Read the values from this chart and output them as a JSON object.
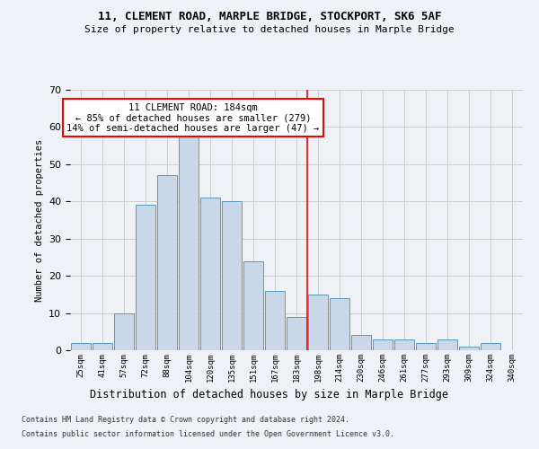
{
  "title1": "11, CLEMENT ROAD, MARPLE BRIDGE, STOCKPORT, SK6 5AF",
  "title2": "Size of property relative to detached houses in Marple Bridge",
  "xlabel": "Distribution of detached houses by size in Marple Bridge",
  "ylabel": "Number of detached properties",
  "footnote1": "Contains HM Land Registry data © Crown copyright and database right 2024.",
  "footnote2": "Contains public sector information licensed under the Open Government Licence v3.0.",
  "annotation_title": "11 CLEMENT ROAD: 184sqm",
  "annotation_line1": "← 85% of detached houses are smaller (279)",
  "annotation_line2": "14% of semi-detached houses are larger (47) →",
  "bar_labels": [
    "25sqm",
    "41sqm",
    "57sqm",
    "72sqm",
    "88sqm",
    "104sqm",
    "120sqm",
    "135sqm",
    "151sqm",
    "167sqm",
    "183sqm",
    "198sqm",
    "214sqm",
    "230sqm",
    "246sqm",
    "261sqm",
    "277sqm",
    "293sqm",
    "309sqm",
    "324sqm",
    "340sqm"
  ],
  "bar_values": [
    2,
    2,
    10,
    39,
    47,
    58,
    41,
    40,
    24,
    16,
    9,
    15,
    14,
    4,
    3,
    3,
    2,
    3,
    1,
    2,
    0
  ],
  "bar_color": "#c8d8e8",
  "bar_edgecolor": "#5a9ab8",
  "vline_color": "red",
  "vline_x_index": 10.5,
  "ylim": [
    0,
    70
  ],
  "yticks": [
    0,
    10,
    20,
    30,
    40,
    50,
    60,
    70
  ],
  "grid_color": "#cccccc",
  "background_color": "#eef2f7",
  "annotation_box_color": "white",
  "annotation_box_edgecolor": "red"
}
